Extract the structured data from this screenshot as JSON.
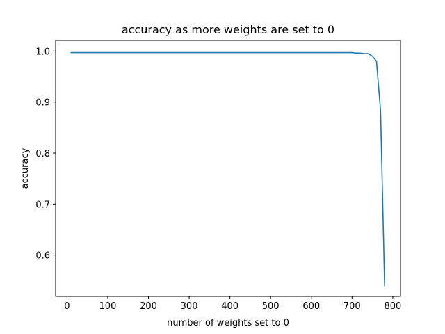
{
  "chart_data": {
    "type": "line",
    "title": "accuracy as more weights are set to 0",
    "xlabel": "number of weights set to 0",
    "ylabel": "accuracy",
    "xlim": [
      -28,
      819
    ],
    "ylim": [
      0.519,
      1.021
    ],
    "xticks": [
      0,
      100,
      200,
      300,
      400,
      500,
      600,
      700,
      800
    ],
    "yticks": [
      0.6,
      0.7,
      0.8,
      0.9,
      1.0
    ],
    "ytick_labels": [
      "0.6",
      "0.7",
      "0.8",
      "0.9",
      "1.0"
    ],
    "grid": false,
    "series": [
      {
        "color": "#1f77b4",
        "x": [
          10,
          100,
          200,
          300,
          400,
          500,
          600,
          680,
          700,
          710,
          720,
          730,
          740,
          750,
          760,
          770,
          780
        ],
        "y": [
          0.997,
          0.997,
          0.997,
          0.997,
          0.997,
          0.997,
          0.997,
          0.997,
          0.997,
          0.996,
          0.996,
          0.995,
          0.995,
          0.99,
          0.98,
          0.883,
          0.54
        ]
      }
    ]
  }
}
